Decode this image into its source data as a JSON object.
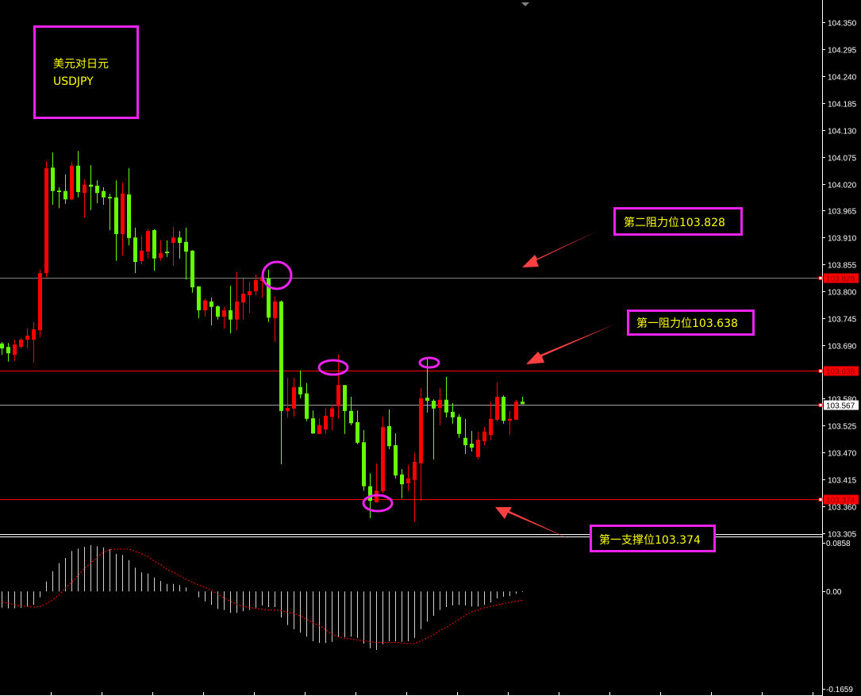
{
  "chart_data": {
    "type": "candlestick",
    "symbol_box": {
      "line1": "美元对日元",
      "line2": "USDJPY"
    },
    "colors": {
      "up": "#ff0000",
      "down": "#66ff00",
      "annotation_box": "#ee22ee",
      "annotation_text": "#ffff00",
      "arrow": "#ff4040",
      "macd_hist": "#d0d0d0",
      "macd_signal": "#ff0000"
    },
    "price_axis": {
      "range": [
        103.305,
        104.35
      ],
      "ticks": [
        "104.350",
        "104.295",
        "104.240",
        "104.185",
        "104.130",
        "104.075",
        "104.020",
        "103.965",
        "103.910",
        "103.855",
        "103.800",
        "103.745",
        "103.690",
        "103.580",
        "103.525",
        "103.470",
        "103.415",
        "103.360",
        "103.305"
      ]
    },
    "level_lines": [
      {
        "price": 103.828,
        "label": "103.828",
        "color": "#808080",
        "tag_bg": "#ff0000",
        "tag_fg": "#800000"
      },
      {
        "price": 103.638,
        "label": "103.638",
        "color": "#ff0000",
        "tag_bg": "#ff0000",
        "tag_fg": "#800000"
      },
      {
        "price": 103.567,
        "label": "103.567",
        "color": "#a0a0a0",
        "tag_bg": "#ffffff",
        "tag_fg": "#000000"
      },
      {
        "price": 103.374,
        "label": "103.374",
        "color": "#ff0000",
        "tag_bg": "#ff0000",
        "tag_fg": "#800000"
      }
    ],
    "annotations": [
      {
        "text": "第二阻力位103.828"
      },
      {
        "text": "第一阻力位103.638"
      },
      {
        "text": "第一支撑位103.374"
      }
    ],
    "candles_ohlc": [
      [
        103.693,
        103.696,
        103.67,
        103.683
      ],
      [
        103.686,
        103.694,
        103.656,
        103.673
      ],
      [
        103.67,
        103.701,
        103.657,
        103.691
      ],
      [
        103.686,
        103.704,
        103.683,
        103.701
      ],
      [
        103.701,
        103.724,
        103.683,
        103.709
      ],
      [
        103.701,
        103.737,
        103.654,
        103.722
      ],
      [
        103.72,
        103.844,
        103.706,
        103.837
      ],
      [
        103.837,
        104.066,
        103.829,
        104.052
      ],
      [
        104.053,
        104.084,
        103.977,
        104.005
      ],
      [
        104.006,
        104.013,
        103.97,
        104.003
      ],
      [
        104.005,
        104.039,
        103.979,
        103.988
      ],
      [
        103.988,
        104.065,
        103.987,
        104.057
      ],
      [
        104.057,
        104.087,
        103.992,
        104.003
      ],
      [
        104.001,
        104.029,
        103.951,
        104.018
      ],
      [
        104.018,
        104.058,
        103.966,
        104.014
      ],
      [
        104.016,
        104.027,
        103.98,
        104.001
      ],
      [
        104.005,
        104.013,
        103.977,
        103.992
      ],
      [
        103.993,
        104.0,
        103.925,
        103.99
      ],
      [
        103.992,
        104.027,
        103.862,
        103.917
      ],
      [
        103.917,
        104.021,
        103.873,
        104.0
      ],
      [
        103.998,
        104.052,
        103.894,
        103.909
      ],
      [
        103.91,
        103.93,
        103.837,
        103.86
      ],
      [
        103.862,
        103.914,
        103.855,
        103.883
      ],
      [
        103.881,
        103.927,
        103.868,
        103.923
      ],
      [
        103.925,
        103.927,
        103.842,
        103.867
      ],
      [
        103.868,
        103.904,
        103.862,
        103.878
      ],
      [
        103.881,
        103.904,
        103.87,
        103.878
      ],
      [
        103.899,
        103.932,
        103.852,
        103.91
      ],
      [
        103.91,
        103.923,
        103.867,
        103.899
      ],
      [
        103.901,
        103.93,
        103.824,
        103.881
      ],
      [
        103.883,
        103.884,
        103.797,
        103.808
      ],
      [
        103.81,
        103.81,
        103.745,
        103.761
      ],
      [
        103.761,
        103.785,
        103.748,
        103.781
      ],
      [
        103.779,
        103.787,
        103.73,
        103.768
      ],
      [
        103.769,
        103.771,
        103.742,
        103.748
      ],
      [
        103.748,
        103.768,
        103.724,
        103.761
      ],
      [
        103.761,
        103.811,
        103.714,
        103.742
      ],
      [
        103.742,
        103.839,
        103.72,
        103.779
      ],
      [
        103.777,
        103.826,
        103.742,
        103.795
      ],
      [
        103.792,
        103.819,
        103.755,
        103.8
      ],
      [
        103.8,
        103.834,
        103.792,
        103.823
      ],
      [
        103.821,
        103.841,
        103.787,
        103.829
      ],
      [
        103.826,
        103.844,
        103.737,
        103.746
      ],
      [
        103.745,
        103.789,
        103.696,
        103.779
      ],
      [
        103.779,
        103.781,
        103.446,
        103.555
      ],
      [
        103.555,
        103.623,
        103.542,
        103.561
      ],
      [
        103.56,
        103.623,
        103.543,
        103.604
      ],
      [
        103.604,
        103.638,
        103.581,
        103.589
      ],
      [
        103.591,
        103.612,
        103.534,
        103.539
      ],
      [
        103.54,
        103.556,
        103.508,
        103.509
      ],
      [
        103.508,
        103.54,
        103.508,
        103.526
      ],
      [
        103.517,
        103.561,
        103.508,
        103.545
      ],
      [
        103.543,
        103.568,
        103.516,
        103.56
      ],
      [
        103.565,
        103.67,
        103.539,
        103.608
      ],
      [
        103.608,
        103.608,
        103.508,
        103.555
      ],
      [
        103.555,
        103.584,
        103.526,
        103.53
      ],
      [
        103.532,
        103.556,
        103.487,
        103.49
      ],
      [
        103.491,
        103.516,
        103.392,
        103.401
      ],
      [
        103.401,
        103.427,
        103.336,
        103.371
      ],
      [
        103.368,
        103.448,
        103.368,
        103.392
      ],
      [
        103.391,
        103.543,
        103.386,
        103.522
      ],
      [
        103.524,
        103.558,
        103.477,
        103.483
      ],
      [
        103.485,
        103.509,
        103.417,
        103.423
      ],
      [
        103.425,
        103.436,
        103.376,
        103.405
      ],
      [
        103.407,
        103.444,
        103.391,
        103.417
      ],
      [
        103.414,
        103.469,
        103.329,
        103.451
      ],
      [
        103.448,
        103.602,
        103.371,
        103.581
      ],
      [
        103.582,
        103.665,
        103.552,
        103.576
      ],
      [
        103.576,
        103.579,
        103.456,
        103.56
      ],
      [
        103.561,
        103.602,
        103.526,
        103.578
      ],
      [
        103.578,
        103.625,
        103.542,
        103.552
      ],
      [
        103.553,
        103.571,
        103.529,
        103.542
      ],
      [
        103.543,
        103.548,
        103.5,
        103.508
      ],
      [
        103.5,
        103.539,
        103.467,
        103.485
      ],
      [
        103.488,
        103.514,
        103.472,
        103.48
      ],
      [
        103.461,
        103.513,
        103.456,
        103.496
      ],
      [
        103.493,
        103.522,
        103.485,
        103.513
      ],
      [
        103.506,
        103.574,
        103.495,
        103.539
      ],
      [
        103.537,
        103.613,
        103.534,
        103.584
      ],
      [
        103.584,
        103.587,
        103.529,
        103.535
      ],
      [
        103.535,
        103.555,
        103.506,
        103.539
      ],
      [
        103.537,
        103.578,
        103.537,
        103.574
      ],
      [
        103.574,
        103.584,
        103.569,
        103.569
      ]
    ],
    "macd": {
      "axis_labels": [
        "0.0858",
        "0.00",
        "-0.1659"
      ],
      "range": [
        -0.1659,
        0.0858
      ],
      "histogram": [
        -0.028,
        -0.029,
        -0.029,
        -0.028,
        -0.026,
        -0.023,
        -0.01,
        0.017,
        0.035,
        0.049,
        0.058,
        0.07,
        0.074,
        0.077,
        0.08,
        0.078,
        0.076,
        0.073,
        0.065,
        0.063,
        0.054,
        0.041,
        0.033,
        0.031,
        0.024,
        0.018,
        0.013,
        0.013,
        0.011,
        0.007,
        0.0,
        -0.01,
        -0.017,
        -0.023,
        -0.03,
        -0.032,
        -0.037,
        -0.037,
        -0.034,
        -0.032,
        -0.028,
        -0.024,
        -0.027,
        -0.027,
        -0.045,
        -0.058,
        -0.065,
        -0.071,
        -0.078,
        -0.086,
        -0.089,
        -0.089,
        -0.087,
        -0.079,
        -0.079,
        -0.078,
        -0.08,
        -0.09,
        -0.098,
        -0.101,
        -0.091,
        -0.086,
        -0.086,
        -0.087,
        -0.086,
        -0.08,
        -0.065,
        -0.052,
        -0.042,
        -0.032,
        -0.027,
        -0.024,
        -0.023,
        -0.024,
        -0.026,
        -0.026,
        -0.023,
        -0.019,
        -0.012,
        -0.009,
        -0.008,
        -0.004,
        -0.001
      ],
      "signal": [
        -0.018,
        -0.02,
        -0.023,
        -0.025,
        -0.026,
        -0.027,
        -0.026,
        -0.021,
        -0.014,
        -0.006,
        0.006,
        0.016,
        0.028,
        0.04,
        0.049,
        0.059,
        0.068,
        0.072,
        0.073,
        0.073,
        0.073,
        0.069,
        0.065,
        0.06,
        0.052,
        0.046,
        0.038,
        0.033,
        0.027,
        0.021,
        0.016,
        0.011,
        0.007,
        0.002,
        -0.005,
        -0.011,
        -0.017,
        -0.022,
        -0.026,
        -0.028,
        -0.029,
        -0.031,
        -0.032,
        -0.032,
        -0.033,
        -0.036,
        -0.038,
        -0.042,
        -0.048,
        -0.054,
        -0.059,
        -0.066,
        -0.074,
        -0.078,
        -0.081,
        -0.082,
        -0.084,
        -0.085,
        -0.087,
        -0.088,
        -0.088,
        -0.088,
        -0.088,
        -0.089,
        -0.09,
        -0.09,
        -0.085,
        -0.08,
        -0.075,
        -0.067,
        -0.062,
        -0.055,
        -0.048,
        -0.041,
        -0.035,
        -0.032,
        -0.028,
        -0.026,
        -0.023,
        -0.021,
        -0.019,
        -0.017,
        -0.015
      ]
    }
  }
}
